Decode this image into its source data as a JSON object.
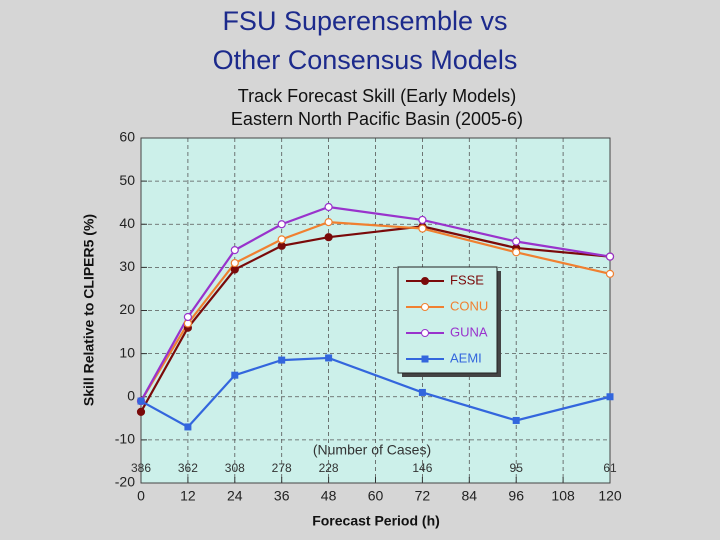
{
  "chart_data": {
    "type": "line",
    "title": [
      "FSU Superensemble vs",
      "Other Consensus Models"
    ],
    "subtitle": [
      "Track Forecast Skill (Early Models)",
      "Eastern North Pacific Basin (2005-6)"
    ],
    "x_label": "Forecast Period (h)",
    "y_label": "Skill Relative to CLIPER5 (%)",
    "x": [
      0,
      12,
      24,
      36,
      48,
      72,
      96,
      120
    ],
    "series": [
      {
        "name": "FSSE",
        "color": "#7a0a0a",
        "marker": "filled-circle",
        "values": [
          -3.5,
          16,
          29.5,
          35,
          37,
          39.5,
          34.5,
          32.5
        ]
      },
      {
        "name": "CONU",
        "color": "#f08030",
        "marker": "open-circle",
        "values": [
          -1,
          17,
          31,
          36.5,
          40.5,
          39,
          33.5,
          28.5
        ]
      },
      {
        "name": "GUNA",
        "color": "#9933cc",
        "marker": "open-circle",
        "values": [
          -1,
          18.5,
          34,
          40,
          44,
          41,
          36,
          32.5
        ]
      },
      {
        "name": "AEMI",
        "color": "#3366dd",
        "marker": "square",
        "values": [
          -1,
          -7,
          5,
          8.5,
          9,
          1,
          -5.5,
          0
        ]
      }
    ],
    "cases_label": "(Number of Cases)",
    "case_counts": [
      386,
      362,
      308,
      278,
      228,
      146,
      95,
      61
    ],
    "xlim": [
      0,
      120
    ],
    "ylim": [
      -20,
      60
    ],
    "xticks": [
      0,
      12,
      24,
      36,
      48,
      60,
      72,
      84,
      96,
      108,
      120
    ],
    "yticks": [
      -20,
      -10,
      0,
      10,
      20,
      30,
      40,
      50,
      60
    ],
    "grid": true
  }
}
